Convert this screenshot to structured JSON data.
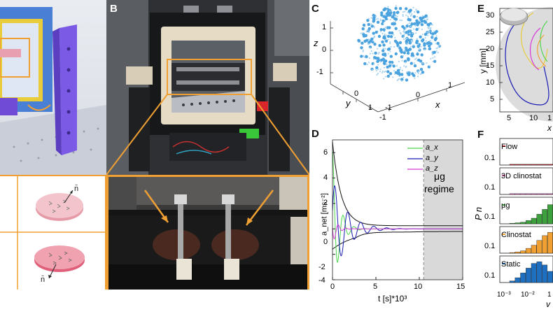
{
  "panels": {
    "b": "B",
    "c": "C",
    "d": "D",
    "e": "E",
    "f": "F"
  },
  "panel_a": {
    "normal_top": "n̄",
    "normal_bottom": "n̄"
  },
  "colors": {
    "orange": "#f0a033",
    "blue_frame": "#4a7fd6",
    "purple": "#7b5be6",
    "points": "#4aa3df"
  },
  "chart_c": {
    "axis_z": "z",
    "axis_y": "y",
    "axis_x": "x",
    "z_ticks": [
      "1",
      "0",
      "-1"
    ],
    "y_ticks": [
      "-1",
      "0",
      "1"
    ],
    "x_ticks": [
      "-1",
      "0",
      "1"
    ]
  },
  "chart_data": [
    {
      "type": "line",
      "xlabel": "t [s]*10³",
      "ylabel": "a_net [ms⁻²]",
      "xlim": [
        0,
        15
      ],
      "ylim": [
        -4,
        7
      ],
      "x_ticks": [
        "0",
        "5",
        "10",
        "15"
      ],
      "y_ticks": [
        "6",
        "4",
        "2",
        "0",
        "-2",
        "-4"
      ],
      "legend": [
        "a_x",
        "a_y",
        "a_z"
      ],
      "legend_position": "top-right",
      "annotation": "μg regime",
      "annotation_line1": "μg",
      "annotation_line2": "regime",
      "shaded_region": [
        10.5,
        15
      ]
    },
    {
      "type": "line",
      "xlabel": "x",
      "ylabel": "y [mm]",
      "y_ticks": [
        "30",
        "25",
        "20",
        "15",
        "10",
        "5"
      ],
      "x_ticks": [
        "5",
        "10",
        "1"
      ]
    },
    {
      "type": "bar",
      "ylabel": "P n",
      "xlabel": "v",
      "y_tick": "0.1",
      "x_ticks": [
        "10⁻³",
        "10⁻²",
        "1"
      ],
      "series": [
        {
          "name": "Flow",
          "values": [
            0.005,
            0.005,
            0.005,
            0.005,
            0.005,
            0.005,
            0.005,
            0.005
          ]
        },
        {
          "name": "3D clinostat",
          "values": [
            0.005,
            0.005,
            0.005,
            0.005,
            0.005,
            0.005,
            0.005,
            0.005
          ]
        },
        {
          "name": "μg",
          "values": [
            0.003,
            0.006,
            0.01,
            0.02,
            0.035,
            0.06,
            0.09,
            0.12
          ]
        },
        {
          "name": "Clinostat",
          "values": [
            0.004,
            0.008,
            0.015,
            0.03,
            0.05,
            0.08,
            0.11,
            0.13
          ]
        },
        {
          "name": "Static",
          "values": [
            0.01,
            0.03,
            0.06,
            0.09,
            0.12,
            0.13,
            0.11,
            0.07
          ]
        }
      ]
    }
  ]
}
